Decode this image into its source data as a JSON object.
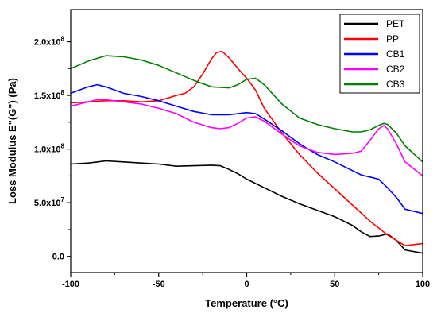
{
  "chart_data": {
    "type": "line",
    "title": "",
    "xlabel": "Temperature (°C)",
    "ylabel": "Loss Modulus E\"(G\") (Pa)",
    "xlim": [
      -100,
      100
    ],
    "ylim": [
      -0.15,
      2.3
    ],
    "y_exponent_note": "×10^8",
    "xticks": [
      -100,
      -50,
      0,
      50,
      100
    ],
    "xtick_labels": [
      "-100",
      "-50",
      "0",
      "50",
      "100"
    ],
    "yticks": [
      0.0,
      0.5,
      1.0,
      1.5,
      2.0
    ],
    "ytick_labels": [
      {
        "mantissa": "0.0",
        "exp": ""
      },
      {
        "mantissa": "5.0x10",
        "exp": "7"
      },
      {
        "mantissa": "1.0x10",
        "exp": "8"
      },
      {
        "mantissa": "1.5x10",
        "exp": "8"
      },
      {
        "mantissa": "2.0x10",
        "exp": "8"
      }
    ],
    "grid": false,
    "legend_position": "top-right",
    "series": [
      {
        "name": "PET",
        "color": "#000000",
        "x": [
          -100,
          -90,
          -80,
          -70,
          -60,
          -50,
          -40,
          -30,
          -20,
          -15,
          -10,
          -5,
          0,
          10,
          20,
          30,
          40,
          50,
          60,
          65,
          70,
          75,
          80,
          85,
          90,
          100
        ],
        "y": [
          0.86,
          0.87,
          0.89,
          0.88,
          0.87,
          0.86,
          0.84,
          0.845,
          0.85,
          0.845,
          0.81,
          0.77,
          0.72,
          0.64,
          0.56,
          0.49,
          0.43,
          0.37,
          0.29,
          0.23,
          0.185,
          0.19,
          0.21,
          0.15,
          0.06,
          0.03
        ]
      },
      {
        "name": "PP",
        "color": "#ff0000",
        "x": [
          -100,
          -90,
          -80,
          -70,
          -60,
          -50,
          -40,
          -35,
          -30,
          -25,
          -20,
          -17,
          -14,
          -10,
          -5,
          0,
          5,
          10,
          20,
          30,
          40,
          50,
          60,
          70,
          80,
          90,
          100
        ],
        "y": [
          1.43,
          1.44,
          1.45,
          1.45,
          1.44,
          1.45,
          1.5,
          1.52,
          1.58,
          1.7,
          1.84,
          1.9,
          1.91,
          1.85,
          1.75,
          1.66,
          1.55,
          1.38,
          1.15,
          0.95,
          0.78,
          0.63,
          0.48,
          0.33,
          0.2,
          0.1,
          0.12
        ]
      },
      {
        "name": "CB1",
        "color": "#0000ff",
        "x": [
          -100,
          -95,
          -90,
          -85,
          -80,
          -70,
          -60,
          -50,
          -40,
          -30,
          -20,
          -10,
          0,
          5,
          10,
          20,
          30,
          40,
          50,
          60,
          65,
          70,
          75,
          80,
          85,
          90,
          100
        ],
        "y": [
          1.52,
          1.55,
          1.58,
          1.6,
          1.58,
          1.52,
          1.49,
          1.45,
          1.4,
          1.35,
          1.32,
          1.32,
          1.34,
          1.33,
          1.28,
          1.17,
          1.05,
          0.95,
          0.88,
          0.8,
          0.76,
          0.74,
          0.72,
          0.64,
          0.55,
          0.44,
          0.4
        ]
      },
      {
        "name": "CB2",
        "color": "#ff00ff",
        "x": [
          -100,
          -90,
          -85,
          -80,
          -70,
          -60,
          -50,
          -40,
          -30,
          -20,
          -15,
          -10,
          -5,
          0,
          5,
          10,
          20,
          30,
          40,
          50,
          60,
          65,
          70,
          75,
          78,
          80,
          85,
          90,
          100
        ],
        "y": [
          1.4,
          1.44,
          1.46,
          1.46,
          1.44,
          1.42,
          1.38,
          1.33,
          1.25,
          1.2,
          1.19,
          1.2,
          1.24,
          1.29,
          1.3,
          1.26,
          1.14,
          1.03,
          0.97,
          0.95,
          0.96,
          0.98,
          1.08,
          1.19,
          1.22,
          1.19,
          1.05,
          0.88,
          0.75
        ]
      },
      {
        "name": "CB3",
        "color": "#008000",
        "x": [
          -100,
          -90,
          -80,
          -70,
          -60,
          -50,
          -40,
          -30,
          -20,
          -10,
          -5,
          0,
          5,
          10,
          20,
          30,
          40,
          50,
          60,
          65,
          70,
          75,
          78,
          80,
          85,
          90,
          100
        ],
        "y": [
          1.75,
          1.82,
          1.87,
          1.86,
          1.83,
          1.78,
          1.71,
          1.64,
          1.58,
          1.57,
          1.6,
          1.65,
          1.66,
          1.6,
          1.42,
          1.29,
          1.23,
          1.19,
          1.16,
          1.16,
          1.18,
          1.22,
          1.24,
          1.23,
          1.15,
          1.03,
          0.88
        ]
      }
    ]
  }
}
